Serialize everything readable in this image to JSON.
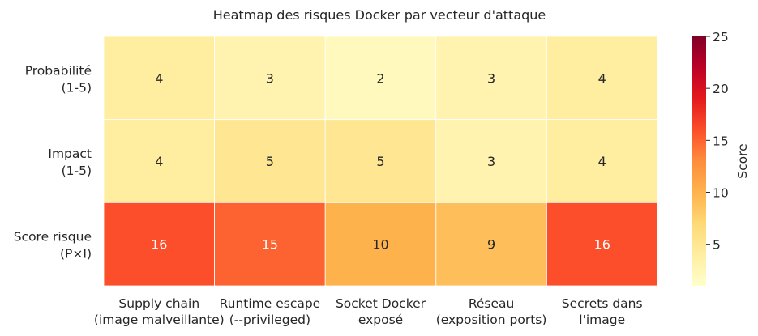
{
  "chart_data": {
    "type": "heatmap",
    "title": "Heatmap des risques Docker par vecteur d'attaque",
    "rows": [
      [
        "Probabilité",
        "(1-5)"
      ],
      [
        "Impact",
        "(1-5)"
      ],
      [
        "Score risque",
        "(P×I)"
      ]
    ],
    "columns": [
      [
        "Supply chain",
        "(image malveillante)"
      ],
      [
        "Runtime escape",
        "(--privileged)"
      ],
      [
        "Socket Docker",
        "exposé"
      ],
      [
        "Réseau",
        "(exposition ports)"
      ],
      [
        "Secrets dans",
        "l'image"
      ]
    ],
    "values": [
      [
        4,
        3,
        2,
        3,
        4
      ],
      [
        4,
        5,
        5,
        3,
        4
      ],
      [
        16,
        15,
        10,
        9,
        16
      ]
    ],
    "colorbar": {
      "label": "Score",
      "vmin": 1,
      "vmax": 25,
      "ticks": [
        5,
        10,
        15,
        20,
        25
      ],
      "colormap": "YlOrRd"
    },
    "annotations": true
  }
}
